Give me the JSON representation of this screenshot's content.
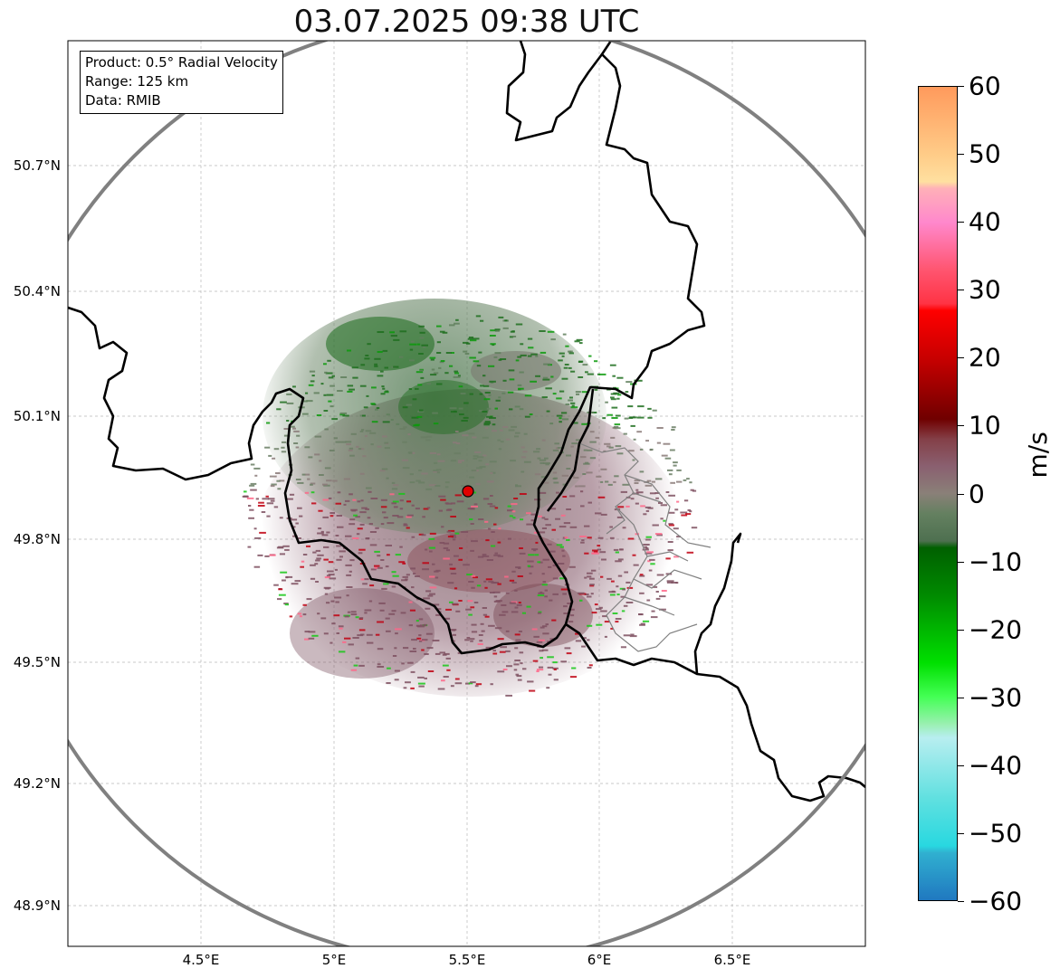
{
  "title": "03.07.2025 09:38 UTC",
  "info_box": {
    "product": "Product: 0.5° Radial Velocity",
    "range": "Range: 125 km",
    "data": "Data: RMIB"
  },
  "map": {
    "lon_ticks": [
      "4.5°E",
      "5°E",
      "5.5°E",
      "6°E",
      "6.5°E"
    ],
    "lat_ticks": [
      "50.7°N",
      "50.4°N",
      "50.1°N",
      "49.8°N",
      "49.5°N",
      "49.2°N",
      "48.9°N"
    ],
    "radar_site": {
      "lon": 5.5,
      "lat": 49.91
    },
    "range_ring_color": "#808080",
    "border_color": "#000000",
    "admin_border_color": "#808080"
  },
  "colorbar": {
    "unit": "m/s",
    "min": -60,
    "max": 60,
    "ticks": [
      "60",
      "50",
      "40",
      "30",
      "20",
      "10",
      "0",
      "−10",
      "−20",
      "−30",
      "−40",
      "−50",
      "−60"
    ],
    "stops": [
      {
        "v": 60,
        "color": "#ff9a5c"
      },
      {
        "v": 50,
        "color": "#ffcc88"
      },
      {
        "v": 46,
        "color": "#ffe0a0"
      },
      {
        "v": 45,
        "color": "#ffb0b8"
      },
      {
        "v": 40,
        "color": "#ff88cc"
      },
      {
        "v": 33,
        "color": "#ff5570"
      },
      {
        "v": 28,
        "color": "#ff3344"
      },
      {
        "v": 27,
        "color": "#ff0000"
      },
      {
        "v": 20,
        "color": "#c80000"
      },
      {
        "v": 11,
        "color": "#700000"
      },
      {
        "v": 8,
        "color": "#844048"
      },
      {
        "v": 4,
        "color": "#8a6070"
      },
      {
        "v": 0,
        "color": "#8a8078"
      },
      {
        "v": -3,
        "color": "#648060"
      },
      {
        "v": -7,
        "color": "#4e7050"
      },
      {
        "v": -8,
        "color": "#006000"
      },
      {
        "v": -15,
        "color": "#008a00"
      },
      {
        "v": -25,
        "color": "#00e000"
      },
      {
        "v": -30,
        "color": "#44ff55"
      },
      {
        "v": -34,
        "color": "#99f0b0"
      },
      {
        "v": -36,
        "color": "#b8eef0"
      },
      {
        "v": -45,
        "color": "#60e0e0"
      },
      {
        "v": -52,
        "color": "#28d8e0"
      },
      {
        "v": -53,
        "color": "#30b0d0"
      },
      {
        "v": -60,
        "color": "#2078c0"
      }
    ]
  }
}
